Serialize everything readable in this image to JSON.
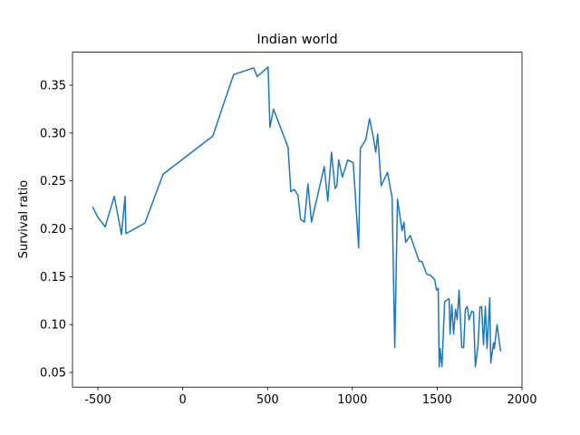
{
  "chart_data": {
    "type": "line",
    "title": "Indian world",
    "y_label": "Survival ratio",
    "x": [
      -532,
      -500,
      -457,
      -404,
      -361,
      -340,
      -335,
      -223,
      -116,
      178,
      236,
      300,
      418,
      439,
      503,
      514,
      535,
      621,
      637,
      658,
      679,
      695,
      717,
      738,
      759,
      834,
      855,
      877,
      898,
      909,
      919,
      941,
      973,
      1005,
      1037,
      1047,
      1079,
      1101,
      1122,
      1138,
      1149,
      1170,
      1207,
      1234,
      1250,
      1266,
      1293,
      1304,
      1314,
      1341,
      1394,
      1410,
      1437,
      1464,
      1485,
      1496,
      1506,
      1512,
      1517,
      1528,
      1544,
      1570,
      1576,
      1586,
      1597,
      1608,
      1618,
      1629,
      1645,
      1656,
      1666,
      1677,
      1688,
      1704,
      1714,
      1725,
      1741,
      1752,
      1762,
      1773,
      1784,
      1794,
      1810,
      1816,
      1832,
      1837,
      1853,
      1874
    ],
    "series": [
      {
        "color": "#1f77b4",
        "values": [
          0.223,
          0.212,
          0.202,
          0.234,
          0.194,
          0.234,
          0.195,
          0.206,
          0.257,
          0.297,
          0.328,
          0.361,
          0.368,
          0.359,
          0.369,
          0.306,
          0.325,
          0.285,
          0.239,
          0.241,
          0.235,
          0.21,
          0.207,
          0.247,
          0.207,
          0.265,
          0.229,
          0.28,
          0.242,
          0.245,
          0.272,
          0.254,
          0.272,
          0.269,
          0.18,
          0.284,
          0.293,
          0.315,
          0.297,
          0.28,
          0.299,
          0.245,
          0.259,
          0.233,
          0.076,
          0.231,
          0.198,
          0.207,
          0.186,
          0.193,
          0.166,
          0.166,
          0.153,
          0.151,
          0.147,
          0.136,
          0.138,
          0.056,
          0.075,
          0.056,
          0.124,
          0.127,
          0.09,
          0.121,
          0.09,
          0.116,
          0.105,
          0.136,
          0.076,
          0.076,
          0.116,
          0.119,
          0.105,
          0.114,
          0.113,
          0.056,
          0.079,
          0.118,
          0.119,
          0.079,
          0.119,
          0.075,
          0.128,
          0.06,
          0.081,
          0.075,
          0.1,
          0.072
        ]
      }
    ],
    "xlim": [
      -650,
      2000
    ],
    "xticks": [
      -500,
      0,
      500,
      1000,
      1500,
      2000
    ],
    "ylim": [
      0.0347,
      0.3844
    ],
    "yticks": [
      0.05,
      {
        "value": 0.1,
        "label": "0.10"
      },
      0.15,
      {
        "value": 0.2,
        "label": "0.20"
      },
      0.25,
      {
        "value": 0.3,
        "label": "0.30"
      },
      0.35
    ],
    "grid": false
  }
}
